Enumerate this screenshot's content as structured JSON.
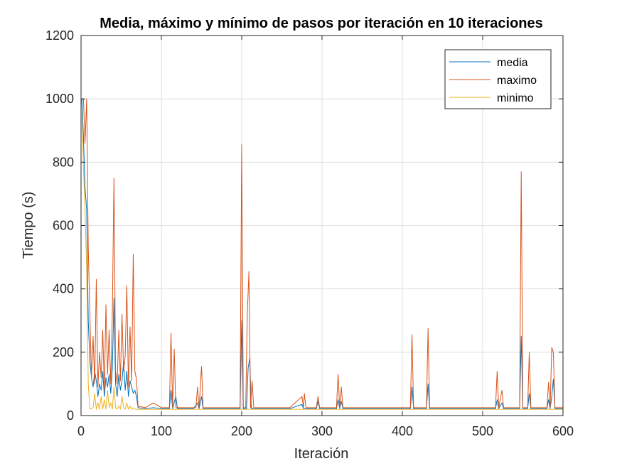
{
  "chart_data": {
    "type": "line",
    "title": "Media, máximo y mínimo de pasos por iteración en 10 iteraciones",
    "xlabel": "Iteración",
    "ylabel": "Tiempo (s)",
    "xlim": [
      0,
      600
    ],
    "ylim": [
      0,
      1200
    ],
    "xticks": [
      0,
      100,
      200,
      300,
      400,
      500,
      600
    ],
    "yticks": [
      0,
      200,
      400,
      600,
      800,
      1000,
      1200
    ],
    "grid": true,
    "legend_position": "top-right",
    "series": [
      {
        "name": "media",
        "color": "#0072BD",
        "points": [
          [
            1,
            1000
          ],
          [
            3,
            880
          ],
          [
            5,
            720
          ],
          [
            7,
            650
          ],
          [
            9,
            300
          ],
          [
            11,
            170
          ],
          [
            13,
            120
          ],
          [
            15,
            90
          ],
          [
            17,
            140
          ],
          [
            19,
            110
          ],
          [
            21,
            60
          ],
          [
            23,
            100
          ],
          [
            25,
            80
          ],
          [
            27,
            140
          ],
          [
            29,
            60
          ],
          [
            31,
            120
          ],
          [
            33,
            90
          ],
          [
            35,
            130
          ],
          [
            37,
            70
          ],
          [
            39,
            150
          ],
          [
            41,
            370
          ],
          [
            43,
            100
          ],
          [
            45,
            60
          ],
          [
            47,
            130
          ],
          [
            49,
            80
          ],
          [
            51,
            110
          ],
          [
            53,
            170
          ],
          [
            55,
            80
          ],
          [
            57,
            140
          ],
          [
            59,
            60
          ],
          [
            61,
            110
          ],
          [
            63,
            90
          ],
          [
            65,
            70
          ],
          [
            67,
            80
          ],
          [
            69,
            60
          ],
          [
            71,
            25
          ],
          [
            80,
            22
          ],
          [
            90,
            25
          ],
          [
            100,
            22
          ],
          [
            110,
            22
          ],
          [
            112,
            80
          ],
          [
            114,
            22
          ],
          [
            118,
            60
          ],
          [
            120,
            22
          ],
          [
            140,
            22
          ],
          [
            145,
            40
          ],
          [
            147,
            22
          ],
          [
            150,
            60
          ],
          [
            152,
            22
          ],
          [
            180,
            22
          ],
          [
            198,
            22
          ],
          [
            200,
            300
          ],
          [
            202,
            22
          ],
          [
            206,
            22
          ],
          [
            208,
            150
          ],
          [
            210,
            180
          ],
          [
            212,
            22
          ],
          [
            260,
            22
          ],
          [
            275,
            35
          ],
          [
            277,
            22
          ],
          [
            293,
            22
          ],
          [
            295,
            45
          ],
          [
            297,
            22
          ],
          [
            318,
            22
          ],
          [
            320,
            50
          ],
          [
            322,
            22
          ],
          [
            324,
            45
          ],
          [
            326,
            22
          ],
          [
            410,
            22
          ],
          [
            412,
            90
          ],
          [
            414,
            22
          ],
          [
            430,
            22
          ],
          [
            432,
            100
          ],
          [
            434,
            22
          ],
          [
            465,
            22
          ],
          [
            516,
            22
          ],
          [
            518,
            50
          ],
          [
            520,
            22
          ],
          [
            524,
            40
          ],
          [
            526,
            22
          ],
          [
            546,
            22
          ],
          [
            548,
            250
          ],
          [
            550,
            22
          ],
          [
            556,
            22
          ],
          [
            558,
            70
          ],
          [
            560,
            22
          ],
          [
            580,
            22
          ],
          [
            582,
            50
          ],
          [
            584,
            22
          ],
          [
            586,
            60
          ],
          [
            588,
            115
          ],
          [
            590,
            22
          ],
          [
            600,
            22
          ]
        ]
      },
      {
        "name": "maximo",
        "color": "#D95319",
        "points": [
          [
            1,
            1000
          ],
          [
            3,
            1000
          ],
          [
            5,
            860
          ],
          [
            7,
            1000
          ],
          [
            9,
            530
          ],
          [
            11,
            320
          ],
          [
            13,
            120
          ],
          [
            15,
            250
          ],
          [
            17,
            100
          ],
          [
            19,
            430
          ],
          [
            21,
            90
          ],
          [
            23,
            200
          ],
          [
            25,
            120
          ],
          [
            27,
            270
          ],
          [
            29,
            80
          ],
          [
            31,
            350
          ],
          [
            33,
            130
          ],
          [
            35,
            270
          ],
          [
            37,
            100
          ],
          [
            39,
            330
          ],
          [
            41,
            750
          ],
          [
            43,
            140
          ],
          [
            45,
            100
          ],
          [
            47,
            270
          ],
          [
            49,
            110
          ],
          [
            51,
            320
          ],
          [
            53,
            140
          ],
          [
            55,
            190
          ],
          [
            57,
            410
          ],
          [
            59,
            90
          ],
          [
            61,
            280
          ],
          [
            63,
            110
          ],
          [
            65,
            510
          ],
          [
            67,
            140
          ],
          [
            69,
            115
          ],
          [
            71,
            30
          ],
          [
            80,
            25
          ],
          [
            90,
            40
          ],
          [
            100,
            25
          ],
          [
            110,
            25
          ],
          [
            112,
            260
          ],
          [
            114,
            25
          ],
          [
            116,
            210
          ],
          [
            118,
            25
          ],
          [
            143,
            25
          ],
          [
            145,
            90
          ],
          [
            147,
            25
          ],
          [
            150,
            155
          ],
          [
            152,
            25
          ],
          [
            180,
            25
          ],
          [
            198,
            25
          ],
          [
            200,
            855
          ],
          [
            202,
            25
          ],
          [
            205,
            25
          ],
          [
            207,
            320
          ],
          [
            209,
            455
          ],
          [
            211,
            25
          ],
          [
            213,
            110
          ],
          [
            215,
            25
          ],
          [
            260,
            25
          ],
          [
            275,
            60
          ],
          [
            277,
            25
          ],
          [
            278,
            70
          ],
          [
            280,
            25
          ],
          [
            293,
            25
          ],
          [
            295,
            60
          ],
          [
            297,
            25
          ],
          [
            318,
            25
          ],
          [
            320,
            130
          ],
          [
            322,
            25
          ],
          [
            324,
            90
          ],
          [
            326,
            25
          ],
          [
            410,
            25
          ],
          [
            412,
            255
          ],
          [
            414,
            25
          ],
          [
            430,
            25
          ],
          [
            432,
            275
          ],
          [
            434,
            25
          ],
          [
            465,
            25
          ],
          [
            516,
            25
          ],
          [
            518,
            140
          ],
          [
            520,
            25
          ],
          [
            524,
            80
          ],
          [
            526,
            25
          ],
          [
            546,
            25
          ],
          [
            548,
            770
          ],
          [
            550,
            25
          ],
          [
            556,
            25
          ],
          [
            558,
            200
          ],
          [
            560,
            25
          ],
          [
            580,
            25
          ],
          [
            582,
            105
          ],
          [
            584,
            25
          ],
          [
            586,
            215
          ],
          [
            588,
            200
          ],
          [
            590,
            25
          ],
          [
            600,
            25
          ]
        ]
      },
      {
        "name": "minimo",
        "color": "#EDB120",
        "points": [
          [
            1,
            1000
          ],
          [
            3,
            780
          ],
          [
            5,
            650
          ],
          [
            7,
            460
          ],
          [
            9,
            100
          ],
          [
            11,
            20
          ],
          [
            15,
            25
          ],
          [
            17,
            70
          ],
          [
            19,
            20
          ],
          [
            21,
            40
          ],
          [
            23,
            20
          ],
          [
            25,
            60
          ],
          [
            27,
            20
          ],
          [
            29,
            50
          ],
          [
            31,
            20
          ],
          [
            33,
            80
          ],
          [
            35,
            25
          ],
          [
            37,
            40
          ],
          [
            39,
            20
          ],
          [
            41,
            90
          ],
          [
            43,
            25
          ],
          [
            45,
            20
          ],
          [
            47,
            30
          ],
          [
            49,
            20
          ],
          [
            51,
            60
          ],
          [
            53,
            25
          ],
          [
            55,
            20
          ],
          [
            57,
            40
          ],
          [
            59,
            20
          ],
          [
            61,
            30
          ],
          [
            63,
            20
          ],
          [
            65,
            25
          ],
          [
            67,
            20
          ],
          [
            69,
            20
          ],
          [
            100,
            20
          ],
          [
            200,
            20
          ],
          [
            300,
            20
          ],
          [
            400,
            20
          ],
          [
            500,
            20
          ],
          [
            600,
            20
          ]
        ]
      }
    ]
  }
}
